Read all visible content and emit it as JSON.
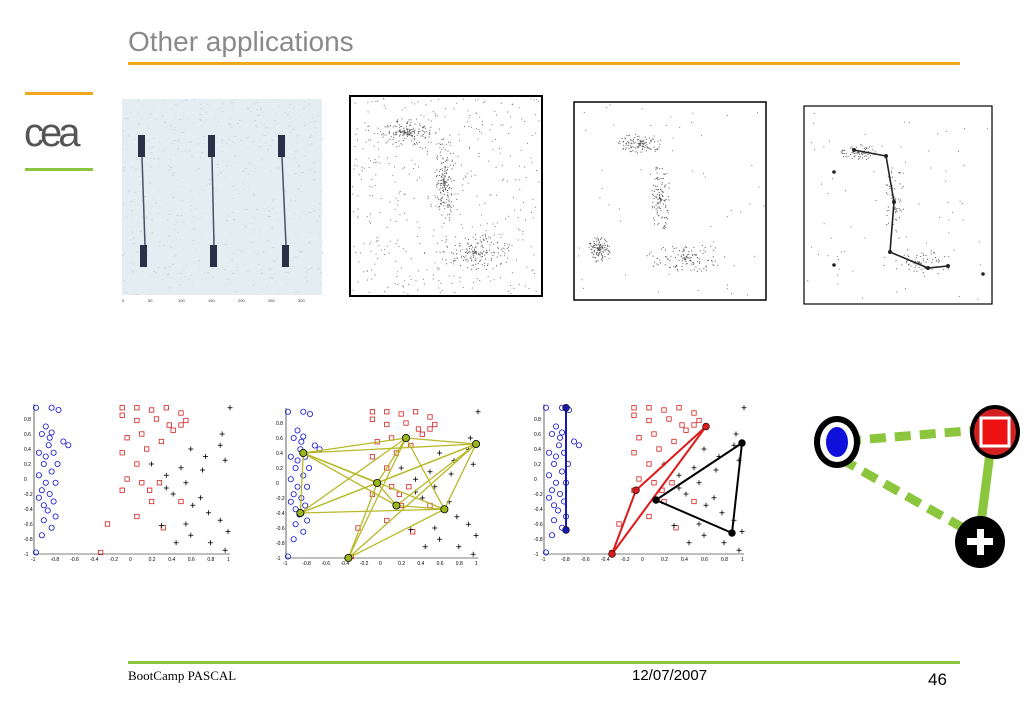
{
  "slide": {
    "title": "Other applications",
    "footer_left": "BootCamp PASCAL",
    "footer_date": "12/07/2007",
    "page_number": "46",
    "logo_text": "cea"
  },
  "colors": {
    "title": "#8a8a8a",
    "rule_top": "#f2a71b",
    "rule_bottom": "#8cc63e",
    "blue": "#1010cc",
    "red": "#d42020",
    "graph_edge": "#b8b828",
    "graph_node": "#9ab81e",
    "dashed_green": "#8cc63e"
  },
  "icons": {
    "node_circle": "circle-class-icon",
    "node_square": "square-class-icon",
    "node_plus": "plus-class-icon"
  },
  "scatter_ticks": {
    "x": [
      "-1",
      "-0.8",
      "-0.6",
      "-0.4",
      "-0.2",
      "0",
      "0.2",
      "0.4",
      "0.6",
      "0.8",
      "1"
    ],
    "y": [
      "1",
      "0.8",
      "0.6",
      "0.4",
      "0.2",
      "0",
      "-0.2",
      "-0.4",
      "-0.6",
      "-0.8",
      "-1"
    ]
  }
}
